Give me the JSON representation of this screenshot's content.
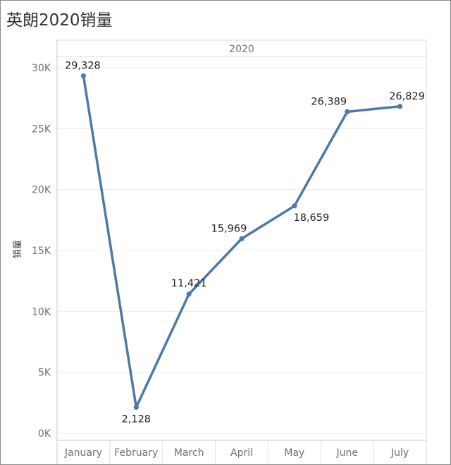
{
  "title": "英朗2020销量",
  "chart_data": {
    "type": "line",
    "title": "英朗2020销量",
    "column_header": "2020",
    "ylabel": "销量",
    "xlabel": "",
    "categories": [
      "January",
      "February",
      "March",
      "April",
      "May",
      "June",
      "July"
    ],
    "series": [
      {
        "values": [
          29328,
          2128,
          11421,
          15969,
          18659,
          26389,
          26829
        ],
        "labels": [
          "29,328",
          "2,128",
          "11,421",
          "15,969",
          "18,659",
          "26,389",
          "26,829"
        ]
      }
    ],
    "y_ticks": [
      0,
      5000,
      10000,
      15000,
      20000,
      25000,
      30000
    ],
    "y_tick_labels": [
      "0K",
      "5K",
      "10K",
      "15K",
      "20K",
      "25K",
      "30K"
    ],
    "ylim": [
      0,
      32000
    ],
    "grid": true,
    "legend": "none",
    "line_color": "#4e79a7"
  }
}
